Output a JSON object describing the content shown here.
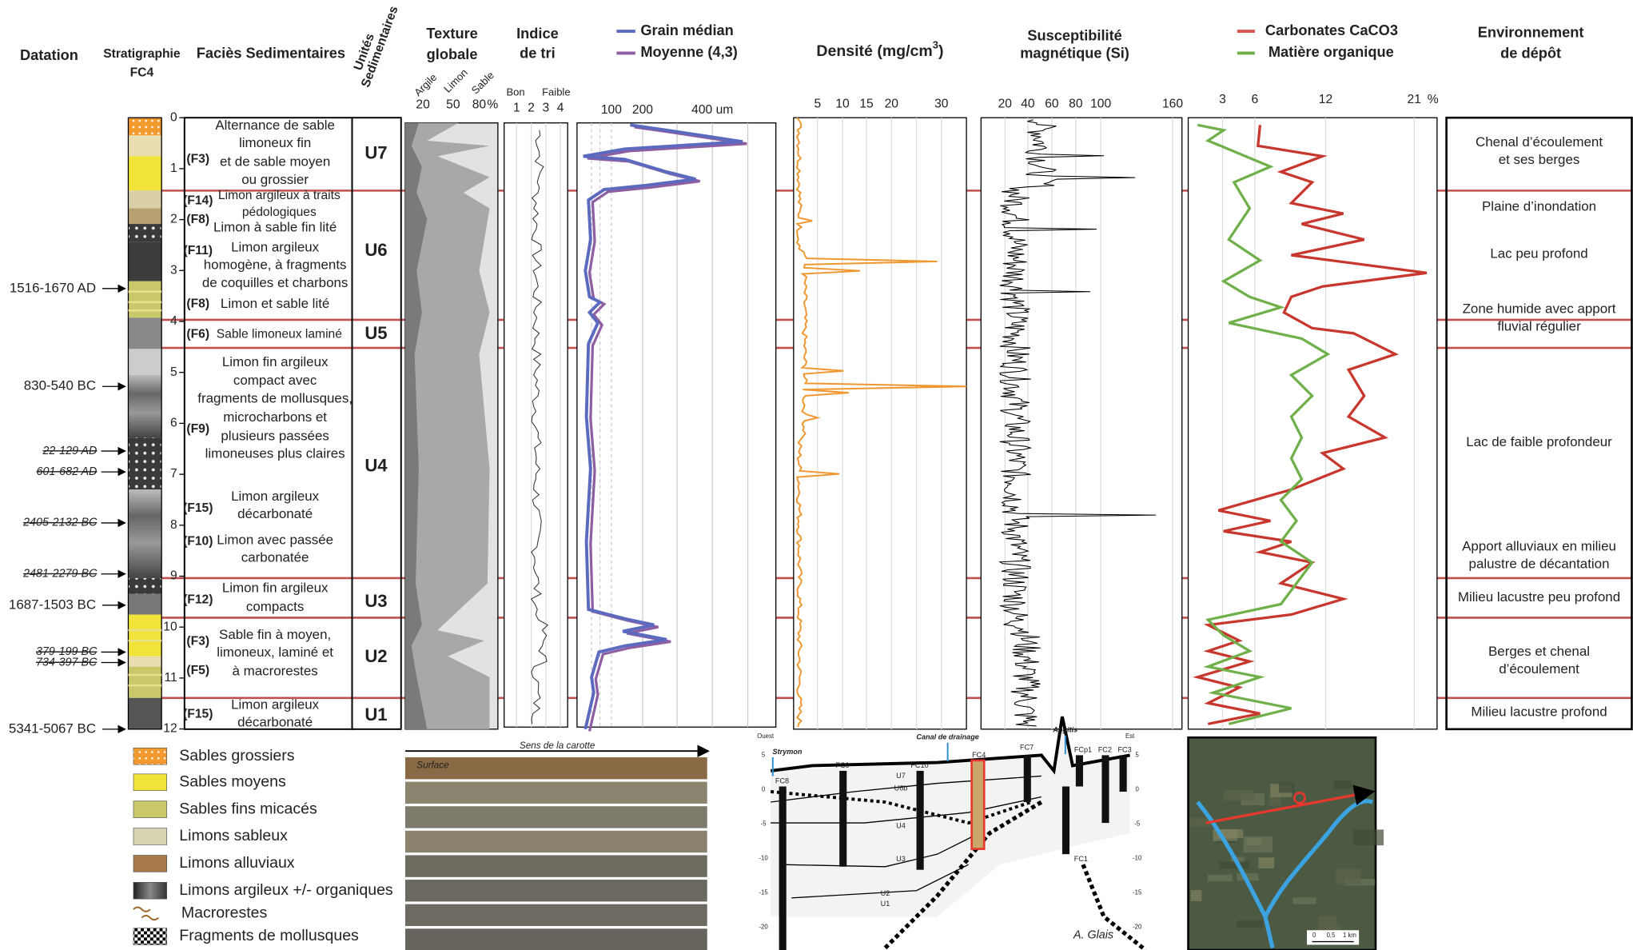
{
  "header": {
    "datation": "Datation",
    "stratigraphie": [
      "Stratigraphie",
      "FC4"
    ],
    "facies": "Faciès Sedimentaires",
    "unites": [
      "Unités",
      "Sedimentaires"
    ],
    "texture": [
      "Texture",
      "globale"
    ],
    "texture_axis": [
      "Argile",
      "Limon",
      "Sable"
    ],
    "indice": [
      "Indice",
      "de tri"
    ],
    "indice_axis": [
      "Bon",
      "Faible"
    ],
    "grain_legend": [
      "Grain médian",
      "Moyenne (4,3)"
    ],
    "densite": [
      "Densité (mg/cm",
      "3",
      ")"
    ],
    "susceptibilite": [
      "Susceptibilité",
      "magnétique (Si)"
    ],
    "geochimie_legend": [
      "Carbonates  CaCO3",
      "Matière organique"
    ],
    "environnement": [
      "Environnement",
      "de dépôt"
    ]
  },
  "dates": [
    "1516-1670 AD",
    "830-540 BC",
    "22-129 AD",
    "601-682 AD",
    "2405-2132 BC",
    "2481-2279 BC",
    "1687-1503 BC",
    "379-199 BC",
    "734-397 BC",
    "5341-5067 BC"
  ],
  "depth_ticks": [
    0,
    1,
    2,
    3,
    4,
    5,
    6,
    7,
    8,
    9,
    10,
    11,
    12
  ],
  "facies": [
    {
      "code": "(F3)",
      "lines": [
        "Alternance de sable",
        "limoneux fin",
        "et de sable moyen",
        "ou grossier"
      ]
    },
    {
      "code": "(F14)",
      "lines": [
        "Limon argileux à traits",
        "pédologiques"
      ]
    },
    {
      "code": "(F8)",
      "lines": [
        "Limon à sable fin lité"
      ]
    },
    {
      "code": "(F11)",
      "lines": [
        "Limon argileux",
        "homogène, à fragments",
        "de coquilles et charbons"
      ]
    },
    {
      "code": "(F8)",
      "lines": [
        "Limon et sable lité"
      ]
    },
    {
      "code": "(F6)",
      "lines": [
        "Sable limoneux laminé"
      ]
    },
    {
      "code": "(F9)",
      "lines": [
        "Limon fin argileux",
        "compact avec",
        "fragments de mollusques,",
        "microcharbons et",
        "plusieurs passées",
        "limoneuses plus claires"
      ]
    },
    {
      "code": "(F15)",
      "lines": [
        "Limon argileux",
        "décarbonaté"
      ]
    },
    {
      "code": "(F10)",
      "lines": [
        "Limon avec passée",
        "carbonatée"
      ]
    },
    {
      "code": "(F12)",
      "lines": [
        "Limon fin argileux",
        "compacts"
      ]
    },
    {
      "code": "(F3)",
      "lines": [
        "Sable fin à moyen,",
        "limoneux, laminé et",
        "à macrorestes"
      ]
    },
    {
      "code": "(F5)"
    },
    {
      "code": "(F15)",
      "lines": [
        "Limon argileux",
        "décarbonaté"
      ]
    }
  ],
  "units": [
    "U7",
    "U6",
    "U5",
    "U4",
    "U3",
    "U2",
    "U1"
  ],
  "texture_ticks": [
    20,
    50,
    80
  ],
  "texture_unit": "%",
  "indice_ticks": [
    1,
    2,
    3,
    4
  ],
  "grain_ticks": [
    100,
    200,
    "400 um"
  ],
  "densite_ticks": [
    5,
    10,
    15,
    20,
    30
  ],
  "susceptibilite_ticks": [
    20,
    40,
    60,
    80,
    100,
    160
  ],
  "geochimie_ticks": [
    3,
    6,
    12,
    21
  ],
  "geochimie_unit": "%",
  "environments": [
    [
      "Chenal d’écoulement",
      "et ses berges"
    ],
    [
      "Plaine d’inondation"
    ],
    [
      "Lac peu profond"
    ],
    [
      "Zone humide avec apport",
      "fluvial régulier"
    ],
    [
      "Lac de faible profondeur"
    ],
    [
      "Apport alluviaux en milieu",
      "palustre de décantation"
    ],
    [
      "Milieu lacustre peu profond"
    ],
    [
      "Berges et chenal",
      "d’écoulement"
    ],
    [
      "Milieu lacustre profond"
    ]
  ],
  "legend": [
    "Sables grossiers",
    "Sables moyens",
    "Sables fins micacés",
    "Limons sableux",
    "Limons alluviaux",
    "Limons argileux +/- organiques",
    "Macrorestes",
    "Fragments de mollusques"
  ],
  "photo": {
    "direction": "Sens de la carotte",
    "surface": "Surface"
  },
  "section": {
    "west": "Ouest",
    "east": "Est",
    "rivers": [
      "Strymon",
      "Canal de drainage",
      "Angitis"
    ],
    "cores": [
      "FC8",
      "FC9",
      "FC10",
      "FC4",
      "FC7",
      "FCp1",
      "FC2",
      "FC3",
      "FC1"
    ],
    "units": [
      "U7",
      "U6b",
      "U4",
      "U3",
      "U2",
      "U1"
    ],
    "elevations": [
      5,
      0,
      -5,
      -10,
      -15,
      -20
    ],
    "author": "A. Glais"
  },
  "map": {
    "scale": [
      "0",
      "0,5",
      "1 km"
    ]
  }
}
